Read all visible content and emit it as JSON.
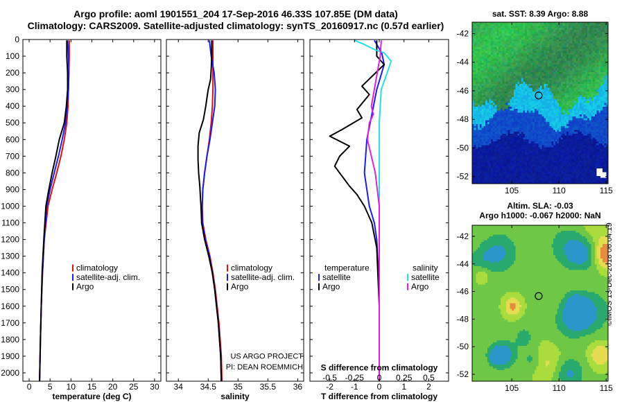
{
  "titles": {
    "line1": "Argo profile: aoml 1901551_204 17-Sep-2016 46.33S 107.85E (DM data)",
    "line2": "Climatology: CARS2009. Satellite-adjusted climatology: synTS_20160917.nc (0.57d earlier)"
  },
  "colors": {
    "argo": "#000000",
    "satellite": "#1a1aff",
    "climatology": "#e01010",
    "s_satellite": "#22e0e8",
    "s_argo": "#e020e0"
  },
  "depth_axis": {
    "ticks": [
      0,
      100,
      200,
      300,
      400,
      500,
      600,
      700,
      800,
      900,
      1000,
      1100,
      1200,
      1300,
      1400,
      1500,
      1600,
      1700,
      1800,
      1900,
      2000
    ],
    "ylim": [
      0,
      2050
    ]
  },
  "chart_data": [
    {
      "type": "line",
      "xlabel": "temperature (deg C)",
      "xticks": [
        "0",
        "5",
        "10",
        "15",
        "20",
        "25",
        "30"
      ],
      "xlim": [
        -1.5,
        31.5
      ],
      "legend": [
        "climatology",
        "satellite-adj. clim.",
        "Argo"
      ],
      "series": [
        {
          "name": "climatology",
          "color": "#e01010",
          "points": [
            [
              9.6,
              5
            ],
            [
              9.6,
              100
            ],
            [
              9.5,
              200
            ],
            [
              9.4,
              300
            ],
            [
              9.3,
              400
            ],
            [
              9.0,
              500
            ],
            [
              8.4,
              600
            ],
            [
              7.6,
              700
            ],
            [
              6.6,
              800
            ],
            [
              5.5,
              900
            ],
            [
              4.5,
              1000
            ],
            [
              3.6,
              1200
            ],
            [
              3.2,
              1400
            ],
            [
              2.9,
              1600
            ],
            [
              2.7,
              1800
            ],
            [
              2.5,
              2050
            ]
          ]
        },
        {
          "name": "satellite-adj. clim.",
          "color": "#1a1aff",
          "points": [
            [
              9.2,
              5
            ],
            [
              9.4,
              100
            ],
            [
              9.5,
              200
            ],
            [
              9.4,
              300
            ],
            [
              9.1,
              400
            ],
            [
              8.7,
              500
            ],
            [
              7.9,
              600
            ],
            [
              7.0,
              700
            ],
            [
              6.0,
              800
            ],
            [
              5.0,
              900
            ],
            [
              4.2,
              1000
            ],
            [
              3.6,
              1200
            ],
            [
              3.2,
              1400
            ],
            [
              2.9,
              1600
            ],
            [
              2.7,
              1800
            ],
            [
              2.5,
              2050
            ]
          ]
        },
        {
          "name": "Argo",
          "color": "#000000",
          "points": [
            [
              9.0,
              5
            ],
            [
              9.0,
              100
            ],
            [
              9.2,
              200
            ],
            [
              9.2,
              300
            ],
            [
              8.9,
              400
            ],
            [
              8.4,
              500
            ],
            [
              7.2,
              600
            ],
            [
              6.4,
              700
            ],
            [
              5.5,
              800
            ],
            [
              4.7,
              900
            ],
            [
              4.0,
              1000
            ],
            [
              3.5,
              1200
            ],
            [
              3.1,
              1400
            ],
            [
              2.9,
              1600
            ],
            [
              2.7,
              1800
            ],
            [
              2.5,
              2050
            ]
          ]
        }
      ]
    },
    {
      "type": "line",
      "xlabel": "salinity",
      "xticks": [
        "34",
        "34.5",
        "35",
        "35.5",
        "36"
      ],
      "xtick_values": [
        34,
        34.5,
        35,
        35.5,
        36
      ],
      "xlim": [
        33.8,
        36.1
      ],
      "legend": [
        "climatology",
        "satellite-adj. clim.",
        "Argo"
      ],
      "annotation": [
        "US ARGO PROJECT",
        "PI: DEAN ROEMMICH"
      ],
      "series": [
        {
          "name": "climatology",
          "color": "#e01010",
          "points": [
            [
              34.58,
              5
            ],
            [
              34.58,
              100
            ],
            [
              34.58,
              200
            ],
            [
              34.58,
              300
            ],
            [
              34.57,
              400
            ],
            [
              34.55,
              500
            ],
            [
              34.52,
              600
            ],
            [
              34.48,
              700
            ],
            [
              34.44,
              800
            ],
            [
              34.41,
              900
            ],
            [
              34.4,
              1000
            ],
            [
              34.41,
              1100
            ],
            [
              34.46,
              1200
            ],
            [
              34.53,
              1300
            ],
            [
              34.58,
              1400
            ],
            [
              34.62,
              1500
            ],
            [
              34.65,
              1600
            ],
            [
              34.68,
              1700
            ],
            [
              34.7,
              1800
            ],
            [
              34.72,
              1900
            ],
            [
              34.73,
              2050
            ]
          ]
        },
        {
          "name": "satellite-adj. clim.",
          "color": "#1a1aff",
          "points": [
            [
              34.52,
              5
            ],
            [
              34.55,
              100
            ],
            [
              34.6,
              200
            ],
            [
              34.62,
              300
            ],
            [
              34.61,
              400
            ],
            [
              34.57,
              500
            ],
            [
              34.53,
              600
            ],
            [
              34.48,
              700
            ],
            [
              34.44,
              800
            ],
            [
              34.41,
              900
            ],
            [
              34.4,
              1000
            ],
            [
              34.4,
              1100
            ],
            [
              34.45,
              1200
            ],
            [
              34.52,
              1300
            ],
            [
              34.57,
              1400
            ],
            [
              34.61,
              1500
            ],
            [
              34.64,
              1600
            ],
            [
              34.67,
              1700
            ],
            [
              34.69,
              1800
            ],
            [
              34.71,
              1900
            ],
            [
              34.72,
              2050
            ]
          ]
        },
        {
          "name": "Argo",
          "color": "#000000",
          "points": [
            [
              34.56,
              5
            ],
            [
              34.56,
              100
            ],
            [
              34.55,
              180
            ],
            [
              34.54,
              240
            ],
            [
              34.5,
              300
            ],
            [
              34.48,
              350
            ],
            [
              34.46,
              400
            ],
            [
              34.42,
              480
            ],
            [
              34.35,
              560
            ],
            [
              34.33,
              640
            ],
            [
              34.33,
              720
            ],
            [
              34.34,
              800
            ],
            [
              34.36,
              880
            ],
            [
              34.37,
              950
            ],
            [
              34.38,
              1000
            ],
            [
              34.39,
              1100
            ],
            [
              34.44,
              1200
            ],
            [
              34.51,
              1300
            ],
            [
              34.57,
              1400
            ],
            [
              34.61,
              1500
            ],
            [
              34.64,
              1600
            ],
            [
              34.67,
              1700
            ],
            [
              34.69,
              1800
            ],
            [
              34.71,
              1900
            ],
            [
              34.72,
              2050
            ]
          ]
        }
      ]
    },
    {
      "type": "line",
      "xlabel": "T difference from climatology",
      "xticks": [
        "-2",
        "-1",
        "0",
        "1",
        "2"
      ],
      "xtick_values": [
        -2,
        -1,
        0,
        1,
        2
      ],
      "xlim": [
        -2.8,
        2.8
      ],
      "xlabel_top": "S difference from climatology",
      "xticks_top": [
        "-0.5",
        "-0.25",
        "0",
        "0.25",
        "0.5"
      ],
      "xtick_values_top": [
        -0.5,
        -0.25,
        0,
        0.25,
        0.5
      ],
      "xlim_top": [
        -0.7,
        0.7
      ],
      "legend_temperature": {
        "header": "temperature",
        "items": [
          "satellite",
          "Argo"
        ]
      },
      "legend_salinity": {
        "header": "salinity",
        "items": [
          "satellite",
          "Argo"
        ]
      },
      "series": [
        {
          "name": "satellite",
          "group": "temperature",
          "axis": "T",
          "color": "#1a1aff",
          "points": [
            [
              -0.2,
              5
            ],
            [
              0.1,
              80
            ],
            [
              0.2,
              150
            ],
            [
              -0.1,
              300
            ],
            [
              -0.3,
              450
            ],
            [
              -0.5,
              600
            ],
            [
              -0.6,
              800
            ],
            [
              -0.5,
              900
            ],
            [
              -0.4,
              1000
            ],
            [
              -0.2,
              1100
            ],
            [
              -0.1,
              1200
            ],
            [
              0,
              1500
            ],
            [
              0,
              2050
            ]
          ]
        },
        {
          "name": "Argo",
          "group": "temperature",
          "axis": "T",
          "color": "#000000",
          "points": [
            [
              -0.1,
              5
            ],
            [
              -0.1,
              100
            ],
            [
              0.2,
              150
            ],
            [
              -0.7,
              280
            ],
            [
              -0.4,
              330
            ],
            [
              -0.9,
              420
            ],
            [
              -0.7,
              470
            ],
            [
              -1.5,
              540
            ],
            [
              -2.0,
              580
            ],
            [
              -1.2,
              640
            ],
            [
              -1.6,
              700
            ],
            [
              -1.8,
              760
            ],
            [
              -1.5,
              820
            ],
            [
              -1.2,
              880
            ],
            [
              -0.9,
              930
            ],
            [
              -0.6,
              1000
            ],
            [
              -0.3,
              1100
            ],
            [
              -0.1,
              1250
            ],
            [
              0,
              1600
            ],
            [
              0,
              2050
            ]
          ]
        },
        {
          "name": "satellite",
          "group": "salinity",
          "axis": "S",
          "color": "#22e0e8",
          "points": [
            [
              -0.25,
              5
            ],
            [
              -0.15,
              30
            ],
            [
              -0.05,
              60
            ],
            [
              0.05,
              80
            ],
            [
              0.12,
              130
            ],
            [
              0.08,
              200
            ],
            [
              0.02,
              300
            ],
            [
              0,
              500
            ],
            [
              0,
              700
            ],
            [
              0,
              1000
            ],
            [
              0,
              2050
            ]
          ]
        },
        {
          "name": "Argo",
          "group": "salinity",
          "axis": "S",
          "color": "#e020e0",
          "points": [
            [
              0.02,
              5
            ],
            [
              0.01,
              100
            ],
            [
              -0.02,
              200
            ],
            [
              -0.05,
              300
            ],
            [
              -0.08,
              400
            ],
            [
              -0.06,
              450
            ],
            [
              -0.1,
              500
            ],
            [
              -0.12,
              600
            ],
            [
              -0.08,
              700
            ],
            [
              -0.04,
              800
            ],
            [
              -0.02,
              900
            ],
            [
              0,
              1000
            ],
            [
              0,
              1400
            ],
            [
              0,
              2050
            ]
          ]
        }
      ]
    },
    {
      "type": "heatmap",
      "title": "sat. SST: 8.39 Argo: 8.88",
      "xticks": [
        "105",
        "110",
        "115"
      ],
      "xtick_values": [
        105,
        110,
        115
      ],
      "yticks": [
        "-42",
        "-44",
        "-46",
        "-48",
        "-50",
        "-52"
      ],
      "ytick_values": [
        -42,
        -44,
        -46,
        -48,
        -50,
        -52
      ],
      "xlim": [
        100.8,
        115.2
      ],
      "ylim": [
        -52.5,
        -41.2
      ],
      "marker": {
        "lon": 107.85,
        "lat": -46.33
      }
    },
    {
      "type": "heatmap",
      "title": "Altim. SLA: -0.03",
      "subtitle": "Argo h1000: -0.067 h2000: NaN",
      "xticks": [
        "105",
        "110",
        "115"
      ],
      "xtick_values": [
        105,
        110,
        115
      ],
      "yticks": [
        "-42",
        "-44",
        "-46",
        "-48",
        "-50",
        "-52"
      ],
      "ytick_values": [
        -42,
        -44,
        -46,
        -48,
        -50,
        -52
      ],
      "xlim": [
        100.8,
        115.2
      ],
      "ylim": [
        -52.5,
        -41.2
      ],
      "marker": {
        "lon": 107.85,
        "lat": -46.33
      }
    }
  ],
  "stamp": "©IMOS 13-Dec-2018 06:04:19"
}
